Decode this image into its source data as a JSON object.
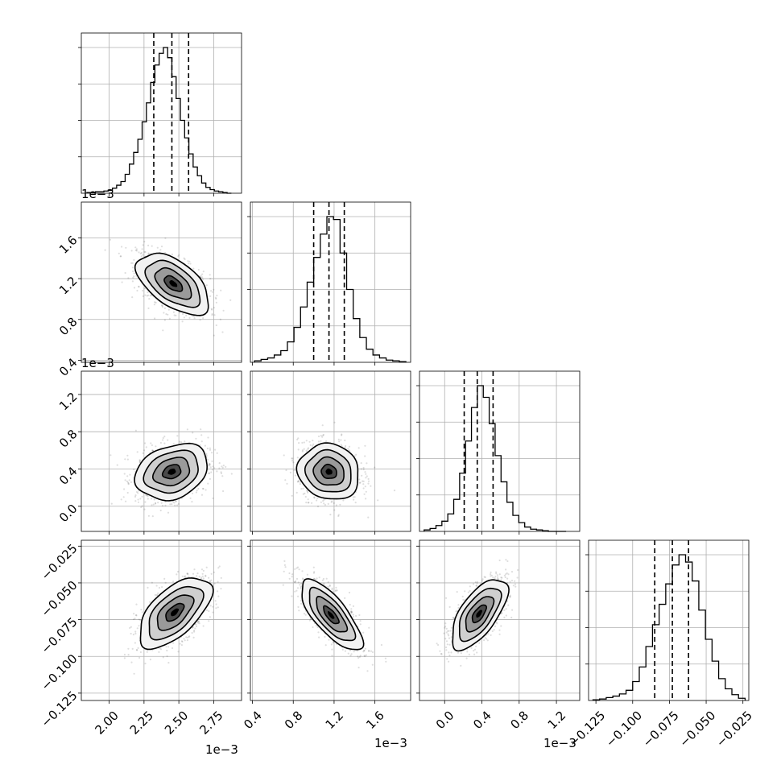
{
  "chart_data": {
    "type": "corner",
    "n_params": 4,
    "offset_labels": [
      "1e−3",
      "1e−3",
      "1e−3"
    ],
    "axes": [
      {
        "ticks": [
          2.0,
          2.25,
          2.5,
          2.75
        ],
        "tick_labels": [
          "2.00",
          "2.25",
          "2.50",
          "2.75"
        ],
        "range": [
          1.8,
          2.95
        ]
      },
      {
        "ticks": [
          0.4,
          0.8,
          1.2,
          1.6
        ],
        "tick_labels": [
          "0.4",
          "0.8",
          "1.2",
          "1.6"
        ],
        "range": [
          0.38,
          1.95
        ]
      },
      {
        "ticks": [
          0.0,
          0.4,
          0.8,
          1.2
        ],
        "tick_labels": [
          "0.0",
          "0.4",
          "0.8",
          "1.2"
        ],
        "range": [
          -0.27,
          1.45
        ]
      },
      {
        "ticks": [
          -0.125,
          -0.1,
          -0.075,
          -0.05,
          -0.025
        ],
        "tick_labels": [
          "−0.125",
          "−0.100",
          "−0.075",
          "−0.050",
          "−0.025"
        ],
        "range": [
          -0.13,
          -0.021
        ]
      }
    ],
    "histograms": [
      {
        "edges": [
          1.84,
          1.8705,
          1.901,
          1.9315,
          1.962,
          1.9925,
          2.023,
          2.0535,
          2.084,
          2.1145,
          2.145,
          2.1755,
          2.206,
          2.2365,
          2.267,
          2.2975,
          2.328,
          2.3585,
          2.389,
          2.4195,
          2.45,
          2.4805,
          2.511,
          2.5415,
          2.572,
          2.6025,
          2.633,
          2.6635,
          2.694,
          2.7245,
          2.755,
          2.7855,
          2.816,
          2.8465,
          2.877
        ],
        "counts": [
          0.005,
          0.005,
          0.01,
          0.01,
          0.015,
          0.02,
          0.035,
          0.055,
          0.08,
          0.13,
          0.2,
          0.28,
          0.37,
          0.49,
          0.62,
          0.76,
          0.88,
          0.96,
          1.0,
          0.93,
          0.8,
          0.65,
          0.5,
          0.38,
          0.27,
          0.18,
          0.12,
          0.07,
          0.04,
          0.025,
          0.015,
          0.01,
          0.005,
          0.0
        ],
        "quantiles": [
          2.32,
          2.45,
          2.57
        ]
      },
      {
        "edges": [
          0.42,
          0.4845,
          0.549,
          0.6135,
          0.678,
          0.7425,
          0.807,
          0.8715,
          0.936,
          1.0005,
          1.065,
          1.1295,
          1.194,
          1.2585,
          1.323,
          1.3875,
          1.452,
          1.5165,
          1.581,
          1.6455,
          1.71,
          1.7745,
          1.839,
          1.9035
        ],
        "counts": [
          0.01,
          0.02,
          0.03,
          0.05,
          0.08,
          0.14,
          0.24,
          0.38,
          0.55,
          0.72,
          0.88,
          1.0,
          0.98,
          0.75,
          0.5,
          0.3,
          0.17,
          0.09,
          0.05,
          0.03,
          0.015,
          0.01,
          0.005
        ],
        "quantiles": [
          1.0,
          1.15,
          1.3
        ]
      },
      {
        "edges": [
          -0.22,
          -0.1565,
          -0.093,
          -0.0295,
          0.034,
          0.0975,
          0.161,
          0.2245,
          0.288,
          0.3515,
          0.415,
          0.4785,
          0.542,
          0.6055,
          0.669,
          0.7325,
          0.796,
          0.8595,
          0.923,
          0.9865,
          1.05,
          1.1135,
          1.177,
          1.2405,
          1.304
        ],
        "counts": [
          0.01,
          0.02,
          0.04,
          0.07,
          0.12,
          0.22,
          0.4,
          0.62,
          0.85,
          1.0,
          0.92,
          0.74,
          0.52,
          0.34,
          0.2,
          0.11,
          0.06,
          0.03,
          0.015,
          0.01,
          0.005,
          0.0,
          0.0,
          0.0
        ],
        "quantiles": [
          0.21,
          0.35,
          0.52
        ]
      },
      {
        "edges": [
          -0.127,
          -0.1225,
          -0.118,
          -0.1135,
          -0.109,
          -0.1045,
          -0.1,
          -0.0955,
          -0.091,
          -0.0865,
          -0.082,
          -0.0775,
          -0.073,
          -0.0685,
          -0.064,
          -0.0595,
          -0.055,
          -0.0505,
          -0.046,
          -0.0415,
          -0.037,
          -0.0325,
          -0.028,
          -0.0235
        ],
        "counts": [
          0.005,
          0.01,
          0.02,
          0.03,
          0.045,
          0.07,
          0.13,
          0.23,
          0.37,
          0.52,
          0.66,
          0.8,
          0.93,
          1.0,
          0.95,
          0.82,
          0.62,
          0.42,
          0.27,
          0.15,
          0.08,
          0.04,
          0.015
        ],
        "quantiles": [
          -0.085,
          -0.073,
          -0.062
        ]
      }
    ],
    "pairs": [
      {
        "col": 0,
        "row": 1,
        "mean": [
          2.46,
          1.15
        ],
        "sd": [
          0.13,
          0.15
        ],
        "rho": -0.55
      },
      {
        "col": 0,
        "row": 2,
        "mean": [
          2.45,
          0.37
        ],
        "sd": [
          0.13,
          0.15
        ],
        "rho": 0.25
      },
      {
        "col": 1,
        "row": 2,
        "mean": [
          1.15,
          0.37
        ],
        "sd": [
          0.15,
          0.15
        ],
        "rho": -0.1
      },
      {
        "col": 0,
        "row": 3,
        "mean": [
          2.47,
          -0.07
        ],
        "sd": [
          0.13,
          0.012
        ],
        "rho": 0.6
      },
      {
        "col": 1,
        "row": 3,
        "mean": [
          1.17,
          -0.072
        ],
        "sd": [
          0.15,
          0.012
        ],
        "rho": -0.75
      },
      {
        "col": 2,
        "row": 3,
        "mean": [
          0.37,
          -0.071
        ],
        "sd": [
          0.15,
          0.012
        ],
        "rho": 0.65
      }
    ],
    "contour_levels_sigma": [
      0.5,
      1.0,
      1.5,
      2.0
    ],
    "grid": true
  }
}
